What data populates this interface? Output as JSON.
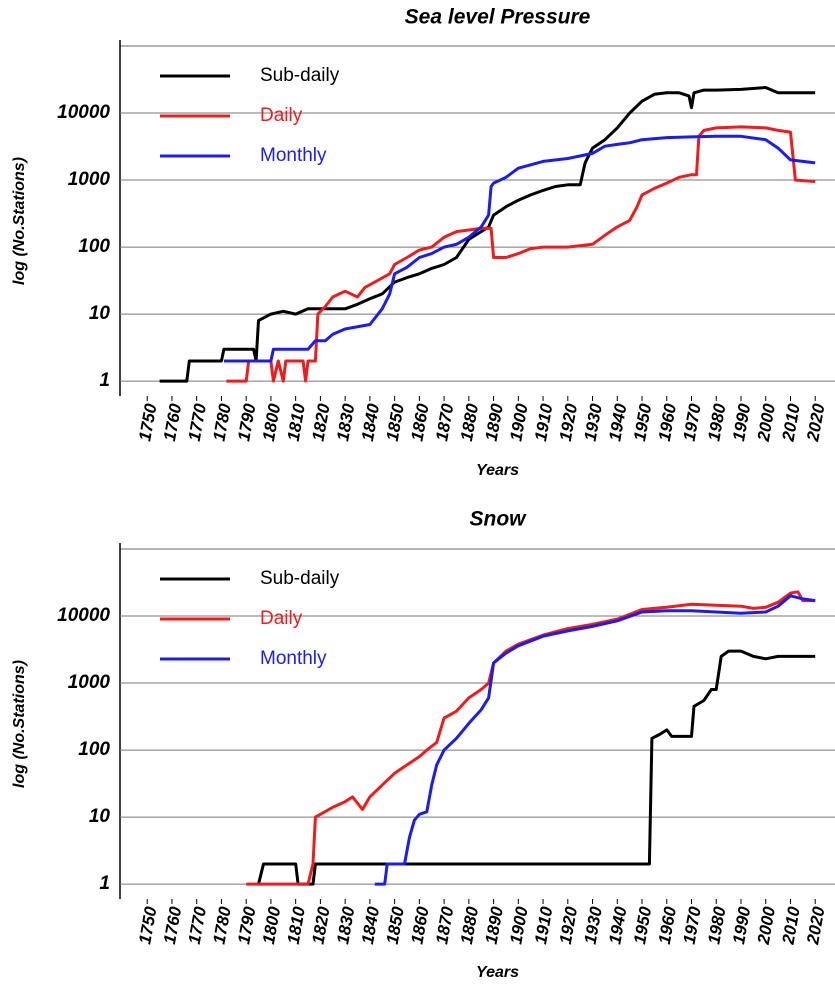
{
  "chart_data": [
    {
      "type": "line",
      "title": "Sea level Pressure",
      "x_label": "Years",
      "y_label": "log  (No.Stations)",
      "log_scale": true,
      "grid": true,
      "legend": "upper left",
      "xlim": [
        1739,
        2028
      ],
      "ylim": [
        0.6,
        100000
      ],
      "xticks": [
        1750,
        1760,
        1770,
        1780,
        1790,
        1800,
        1810,
        1820,
        1830,
        1840,
        1850,
        1860,
        1870,
        1880,
        1890,
        1900,
        1910,
        1920,
        1930,
        1940,
        1950,
        1960,
        1970,
        1980,
        1990,
        2000,
        2010,
        2020
      ],
      "yticks": [
        1,
        10,
        100,
        1000,
        10000
      ],
      "series": [
        {
          "name": "Sub-daily",
          "color": "#000000",
          "x": [
            1755,
            1766,
            1767,
            1780,
            1781,
            1793,
            1794,
            1795,
            1800,
            1805,
            1810,
            1815,
            1820,
            1830,
            1835,
            1840,
            1845,
            1850,
            1855,
            1860,
            1865,
            1870,
            1875,
            1880,
            1885,
            1888,
            1890,
            1895,
            1900,
            1905,
            1910,
            1915,
            1920,
            1925,
            1927,
            1930,
            1935,
            1940,
            1945,
            1950,
            1955,
            1960,
            1965,
            1969,
            1970,
            1971,
            1975,
            1980,
            1990,
            2000,
            2005,
            2010,
            2020
          ],
          "values": [
            1,
            1,
            2,
            2,
            3,
            3,
            2,
            8,
            10,
            11,
            10,
            12,
            12,
            12,
            14,
            17,
            20,
            30,
            35,
            40,
            48,
            55,
            70,
            130,
            170,
            200,
            300,
            400,
            500,
            600,
            700,
            800,
            850,
            850,
            1800,
            3000,
            4000,
            6000,
            10000,
            15000,
            19000,
            20000,
            20000,
            18000,
            12000,
            20000,
            22000,
            22000,
            22500,
            24000,
            20000,
            20000,
            20000
          ]
        },
        {
          "name": "Daily",
          "color": "#ee1c1c",
          "x": [
            1782,
            1785,
            1790,
            1791,
            1800,
            1801,
            1803,
            1805,
            1806,
            1813,
            1814,
            1815,
            1818,
            1819,
            1822,
            1825,
            1830,
            1835,
            1838,
            1842,
            1848,
            1850,
            1855,
            1860,
            1865,
            1870,
            1875,
            1880,
            1885,
            1889,
            1890,
            1895,
            1900,
            1905,
            1910,
            1920,
            1930,
            1935,
            1940,
            1945,
            1948,
            1950,
            1955,
            1960,
            1965,
            1970,
            1972,
            1973,
            1975,
            1980,
            1990,
            2000,
            2005,
            2010,
            2012,
            2020
          ],
          "values": [
            1,
            1,
            1,
            2,
            2,
            1,
            2,
            1,
            2,
            2,
            1,
            2,
            2,
            10,
            13,
            18,
            22,
            18,
            25,
            30,
            40,
            55,
            70,
            90,
            100,
            140,
            170,
            180,
            190,
            190,
            70,
            70,
            80,
            95,
            100,
            100,
            110,
            150,
            200,
            250,
            400,
            600,
            750,
            900,
            1100,
            1200,
            1200,
            4500,
            5500,
            6000,
            6200,
            6000,
            5500,
            5200,
            1000,
            950
          ]
        },
        {
          "name": "Monthly",
          "color": "#1c1cee",
          "x": [
            1781,
            1790,
            1800,
            1801,
            1815,
            1818,
            1822,
            1825,
            1830,
            1840,
            1845,
            1848,
            1850,
            1855,
            1860,
            1865,
            1870,
            1875,
            1880,
            1885,
            1888,
            1889,
            1890,
            1895,
            1900,
            1910,
            1920,
            1930,
            1935,
            1940,
            1945,
            1950,
            1960,
            1970,
            1980,
            1990,
            2000,
            2005,
            2010,
            2020
          ],
          "values": [
            2,
            2,
            2,
            3,
            3,
            4,
            4,
            5,
            6,
            7,
            12,
            20,
            40,
            50,
            70,
            80,
            100,
            110,
            140,
            200,
            300,
            800,
            900,
            1100,
            1500,
            1900,
            2100,
            2500,
            3200,
            3400,
            3600,
            4000,
            4300,
            4400,
            4500,
            4500,
            4000,
            3000,
            2000,
            1800
          ]
        }
      ]
    },
    {
      "type": "line",
      "title": "Snow",
      "x_label": "Years",
      "y_label": "log  (No.Stations)",
      "log_scale": true,
      "grid": true,
      "legend": "upper left",
      "xlim": [
        1739,
        2028
      ],
      "ylim": [
        0.6,
        100000
      ],
      "xticks": [
        1750,
        1760,
        1770,
        1780,
        1790,
        1800,
        1810,
        1820,
        1830,
        1840,
        1850,
        1860,
        1870,
        1880,
        1890,
        1900,
        1910,
        1920,
        1930,
        1940,
        1950,
        1960,
        1970,
        1980,
        1990,
        2000,
        2010,
        2020
      ],
      "yticks": [
        1,
        10,
        100,
        1000,
        10000
      ],
      "series": [
        {
          "name": "Sub-daily",
          "color": "#000000",
          "x": [
            1795,
            1797,
            1810,
            1811,
            1817,
            1818,
            1830,
            1900,
            1950,
            1953,
            1954,
            1957,
            1960,
            1962,
            1970,
            1971,
            1975,
            1978,
            1980,
            1982,
            1985,
            1990,
            1995,
            2000,
            2005,
            2010,
            2020
          ],
          "values": [
            1,
            2,
            2,
            1,
            1,
            2,
            2,
            2,
            2,
            2,
            150,
            170,
            200,
            160,
            160,
            450,
            550,
            800,
            800,
            2500,
            3000,
            3000,
            2500,
            2300,
            2500,
            2500,
            2500
          ]
        },
        {
          "name": "Daily",
          "color": "#ee1c1c",
          "x": [
            1790,
            1799,
            1808,
            1815,
            1817,
            1818,
            1820,
            1825,
            1830,
            1833,
            1837,
            1840,
            1845,
            1850,
            1855,
            1860,
            1863,
            1867,
            1870,
            1875,
            1880,
            1885,
            1888,
            1890,
            1895,
            1900,
            1910,
            1920,
            1930,
            1940,
            1950,
            1960,
            1970,
            1980,
            1990,
            1995,
            2000,
            2005,
            2010,
            2013,
            2015,
            2020
          ],
          "values": [
            1,
            1,
            1,
            1,
            2,
            10,
            11,
            14,
            17,
            20,
            13,
            20,
            30,
            45,
            60,
            80,
            100,
            130,
            300,
            380,
            600,
            800,
            1000,
            2000,
            3000,
            3800,
            5200,
            6500,
            7500,
            9000,
            12500,
            13500,
            15000,
            14500,
            14000,
            13000,
            13500,
            16000,
            22000,
            23000,
            17000,
            17000
          ]
        },
        {
          "name": "Monthly",
          "color": "#1c1cee",
          "x": [
            1842,
            1846,
            1847,
            1854,
            1856,
            1858,
            1860,
            1863,
            1865,
            1867,
            1870,
            1875,
            1880,
            1885,
            1888,
            1890,
            1895,
            1900,
            1910,
            1920,
            1930,
            1940,
            1950,
            1960,
            1970,
            1980,
            1990,
            2000,
            2005,
            2010,
            2015,
            2020
          ],
          "values": [
            1,
            1,
            2,
            2,
            5,
            9,
            11,
            12,
            30,
            60,
            100,
            150,
            250,
            400,
            600,
            2000,
            2800,
            3600,
            5000,
            6000,
            7000,
            8500,
            11500,
            12000,
            12000,
            11500,
            11000,
            11500,
            14000,
            20000,
            18000,
            17000
          ]
        }
      ]
    }
  ]
}
